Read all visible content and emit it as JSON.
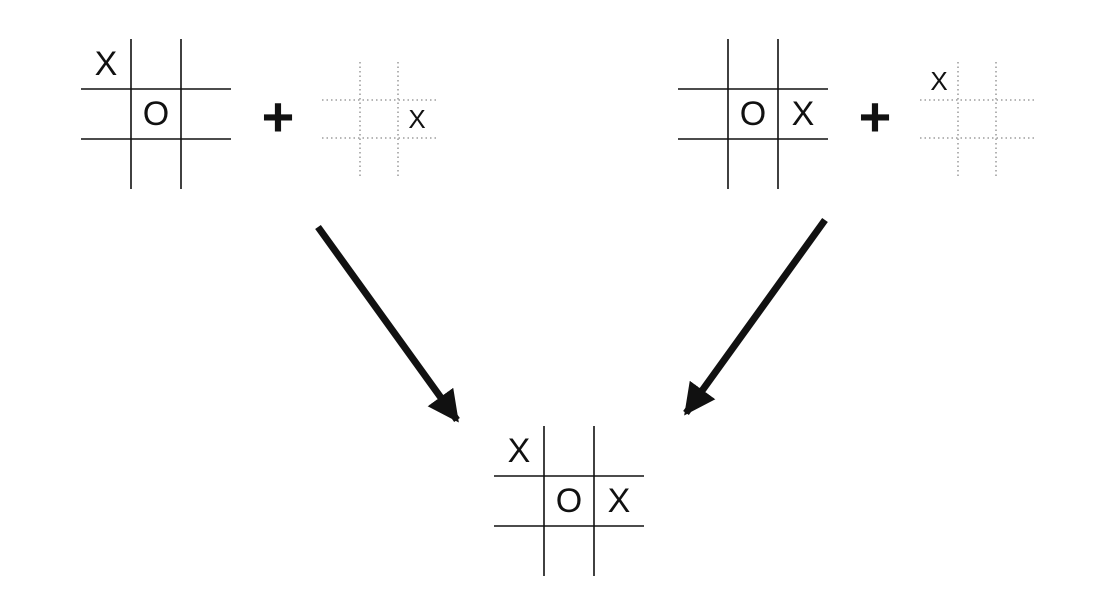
{
  "diagram": {
    "operator_symbol": "+",
    "boards": {
      "left_board": [
        "X",
        "",
        "",
        "",
        "O",
        "",
        "",
        "",
        ""
      ],
      "left_move": [
        "",
        "",
        "",
        "",
        "",
        "X",
        "",
        "",
        ""
      ],
      "right_board": [
        "",
        "",
        "",
        "",
        "O",
        "X",
        "",
        "",
        ""
      ],
      "right_move": [
        "X",
        "",
        "",
        "",
        "",
        "",
        "",
        "",
        ""
      ],
      "result_board": [
        "X",
        "",
        "",
        "",
        "O",
        "X",
        "",
        "",
        ""
      ]
    },
    "colors": {
      "ink": "#111111",
      "dotted_grid": "#8a8a8a",
      "background": "#ffffff"
    }
  }
}
